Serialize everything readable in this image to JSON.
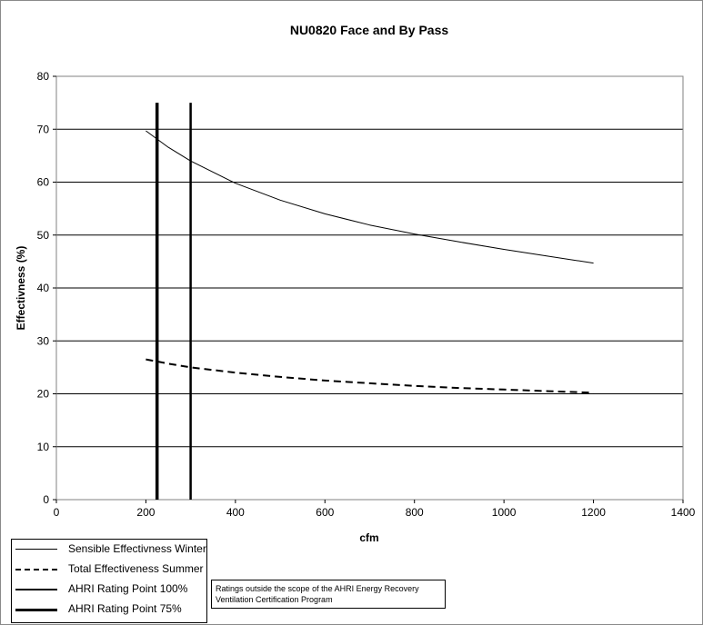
{
  "chart_data": {
    "type": "line",
    "title": "NU0820 Face and By Pass",
    "xlabel": "cfm",
    "ylabel": "Effectivness (%)",
    "xlim": [
      0,
      1400
    ],
    "ylim": [
      0,
      80
    ],
    "xticks": [
      "0",
      "200",
      "400",
      "600",
      "800",
      "1000",
      "1200",
      "1400"
    ],
    "yticks": [
      "0",
      "10",
      "20",
      "30",
      "40",
      "50",
      "60",
      "70",
      "80"
    ],
    "grid": "horizontal",
    "legend_position": "bottom-left",
    "series": [
      {
        "name": "Sensible Effectivness Winter",
        "style": "solid-thin",
        "x": [
          200,
          250,
          300,
          400,
          500,
          600,
          700,
          800,
          900,
          1000,
          1100,
          1200
        ],
        "y": [
          69.7,
          66.6,
          64.0,
          59.8,
          56.6,
          54.0,
          51.9,
          50.2,
          48.7,
          47.3,
          46.0,
          44.7
        ]
      },
      {
        "name": "Total Effectiveness Summer",
        "style": "dashed",
        "x": [
          200,
          250,
          300,
          400,
          500,
          600,
          700,
          800,
          900,
          1000,
          1100,
          1200
        ],
        "y": [
          26.5,
          25.7,
          25.0,
          24.0,
          23.2,
          22.5,
          22.0,
          21.5,
          21.1,
          20.8,
          20.5,
          20.2
        ]
      },
      {
        "name": "AHRI Rating Point 100%",
        "style": "vertical-medium",
        "x": [
          300,
          300
        ],
        "y": [
          0,
          75
        ]
      },
      {
        "name": "AHRI Rating Point 75%",
        "style": "vertical-thick",
        "x": [
          225,
          225
        ],
        "y": [
          0,
          75
        ]
      }
    ]
  },
  "note": "Ratings outside the scope of the AHRI Energy Recovery Ventilation Certification Program",
  "colors": {
    "line": "#000000",
    "grid": "#000000",
    "background": "#ffffff"
  }
}
